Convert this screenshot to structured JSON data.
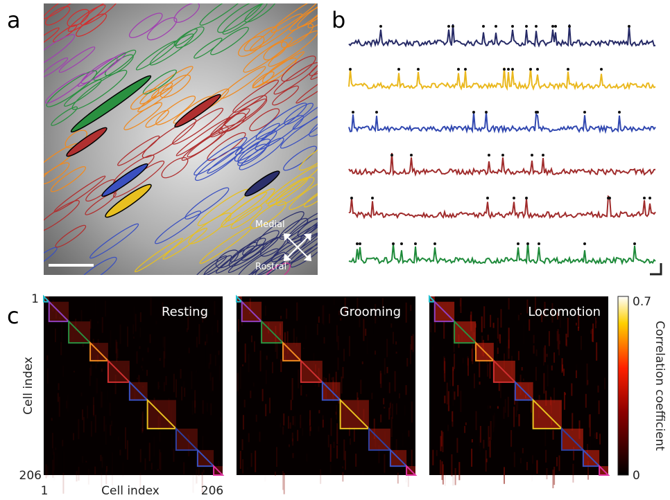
{
  "panel_a": {
    "label": "a",
    "orientation": [
      "Medial",
      "Rostral"
    ]
  },
  "panel_b": {
    "label": "b"
  },
  "panel_c": {
    "label": "c",
    "matrices": [
      "Resting",
      "Grooming",
      "Locomotion"
    ],
    "axis_start": "1",
    "axis_end": "206",
    "axis_label": "Cell index",
    "colorbar": {
      "max": "0.7",
      "min": "0",
      "label": "Correlation coefficient"
    }
  }
}
